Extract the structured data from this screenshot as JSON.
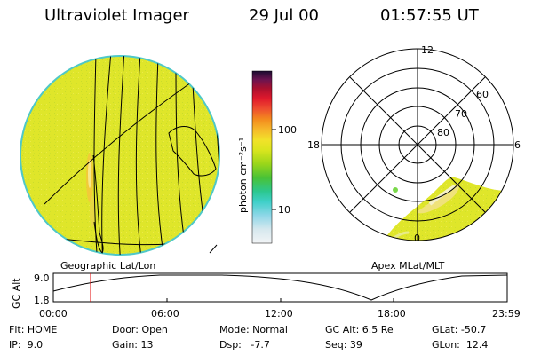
{
  "header": {
    "instrument": "Ultraviolet Imager",
    "date": "29 Jul 00",
    "time": "01:57:55 UT"
  },
  "left_panel": {
    "caption": "Geographic Lat/Lon"
  },
  "right_panel": {
    "caption": "Apex MLat/MLT",
    "mlt_labels": {
      "top": "12",
      "left": "18",
      "right": "6",
      "bottom": "0"
    },
    "lat_labels": [
      "60",
      "70",
      "80"
    ]
  },
  "colorbar": {
    "label": "photon cm⁻²s⁻¹",
    "tick_100": "100",
    "tick_10": "10",
    "colors": [
      "#d7e8ee",
      "#93d8e8",
      "#3fd0c9",
      "#2bc79a",
      "#3ec23a",
      "#82d21c",
      "#c5e01b",
      "#efe72a",
      "#f7c62c",
      "#f6941e",
      "#f0532e",
      "#e41b2c",
      "#b9122c",
      "#7d1446",
      "#4a1556",
      "#1c0d33"
    ]
  },
  "altitude_plot": {
    "ylabel": "GC Alt",
    "yticks": [
      "9.0",
      "1.8"
    ],
    "xticks": [
      "00:00",
      "06:00",
      "12:00",
      "18:00",
      "23:59"
    ]
  },
  "info": {
    "row1": {
      "flt": "Flt: HOME",
      "door": "Door: Open",
      "mode": "Mode: Normal",
      "gcalt": "GC Alt: 6.5 Re",
      "glat": "GLat: -50.7"
    },
    "row2": {
      "ip": "IP:  9.0",
      "gain": "Gain: 13",
      "dsp": "Dsp:   -7.7",
      "seq": "Seq: 39",
      "glon": "GLon:  12.4"
    }
  }
}
